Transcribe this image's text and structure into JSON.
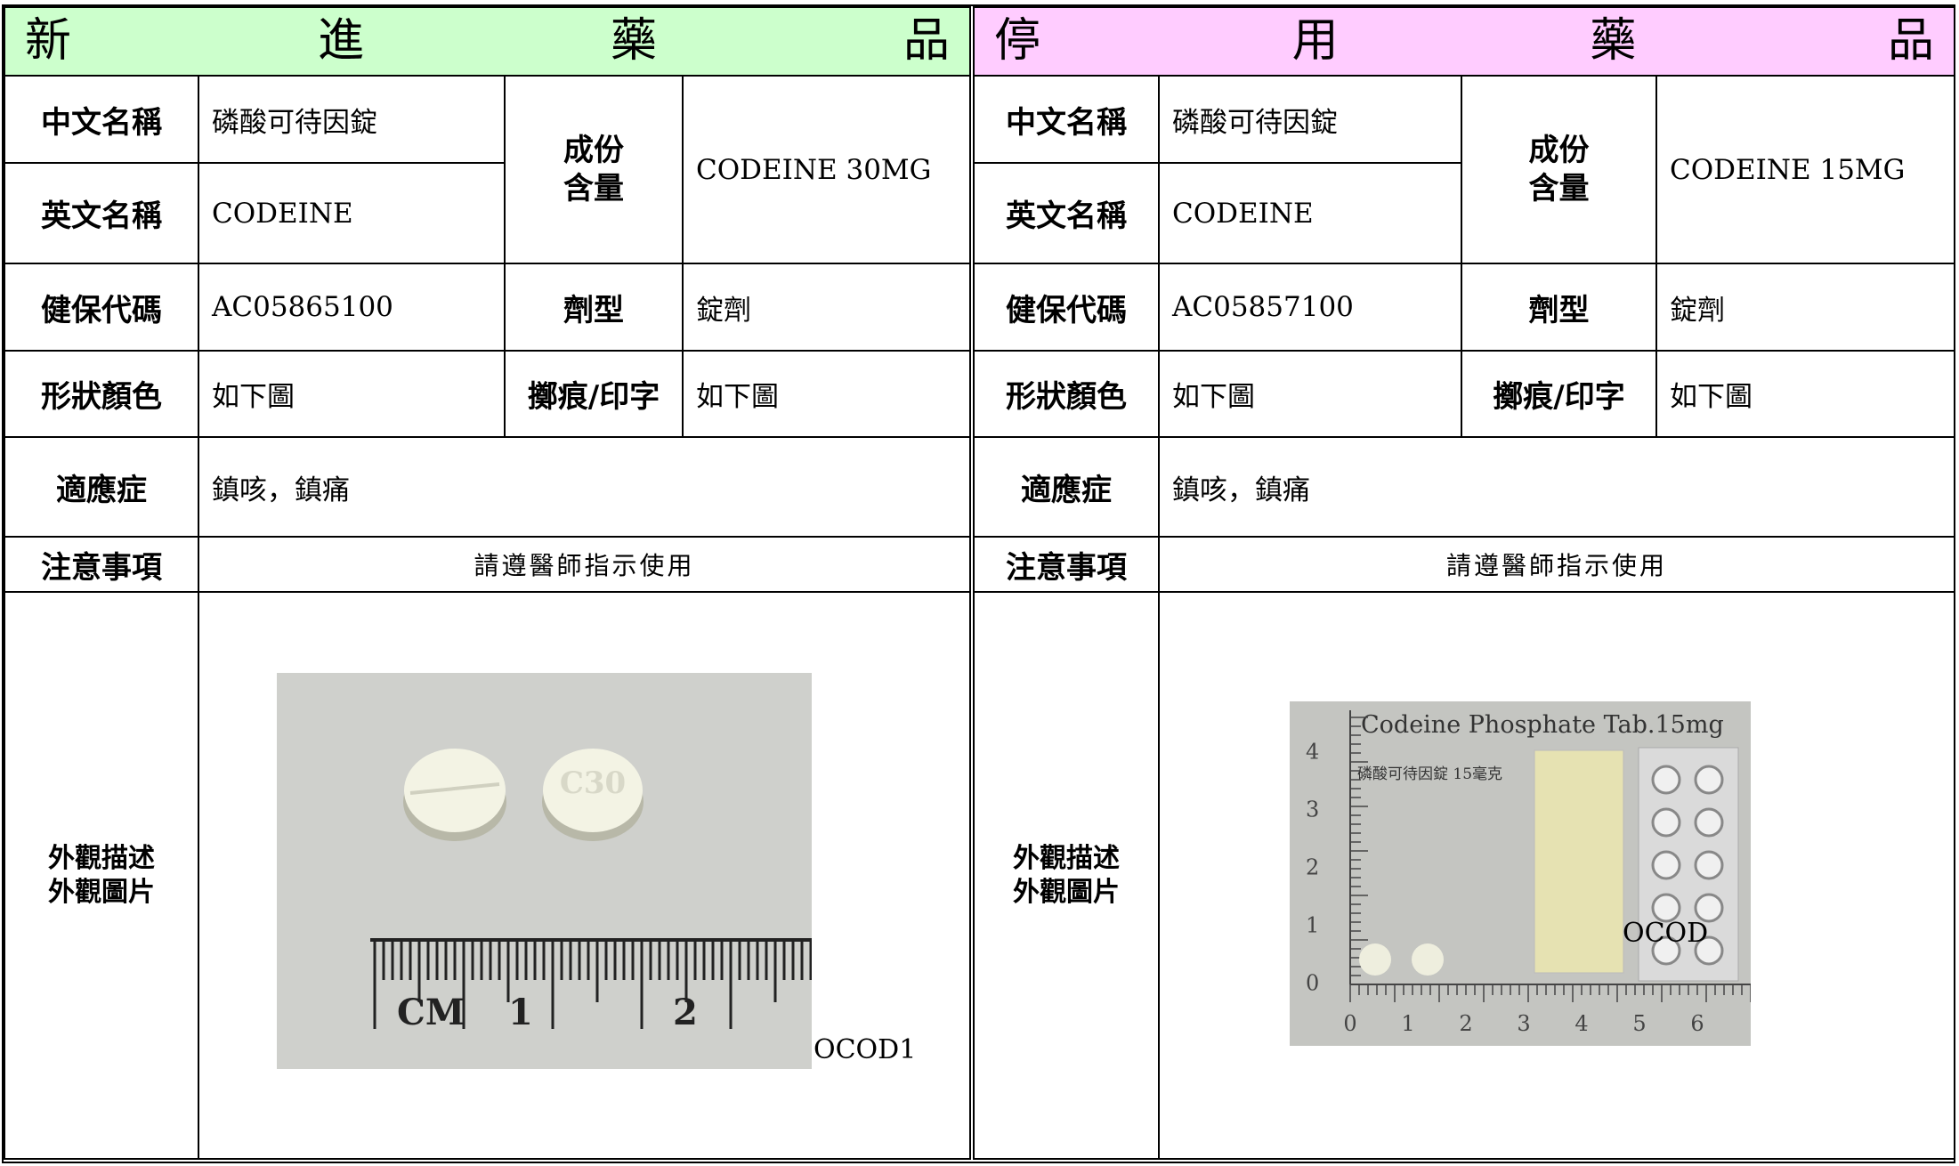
{
  "panels": [
    {
      "title": "新進藥品",
      "chinese_name_label": "中文名稱",
      "chinese_name": "磷酸可待因錠",
      "english_name_label": "英文名稱",
      "english_name": "CODEINE",
      "ingredient_label": [
        "成份",
        "含量"
      ],
      "ingredient": "CODEINE 30MG",
      "code_label": "健保代碼",
      "code": "AC05865100",
      "form_label": "劑型",
      "form": "錠劑",
      "shape_label": "形狀顏色",
      "shape": "如下圖",
      "imprint_label": "擲痕/印字",
      "imprint": "如下圖",
      "indication_label": "適應症",
      "indication": "鎮咳，鎮痛",
      "caution_label": "注意事項",
      "caution": "請遵醫師指示使用",
      "appearance_label": [
        "外觀描述",
        "外觀圖片"
      ],
      "photo": {
        "caption": "OCOD1",
        "imprint": "C30",
        "ruler": [
          "CM",
          "1",
          "2"
        ]
      }
    },
    {
      "title": "停用藥品",
      "chinese_name_label": "中文名稱",
      "chinese_name": "磷酸可待因錠",
      "english_name_label": "英文名稱",
      "english_name": "CODEINE",
      "ingredient_label": [
        "成份",
        "含量"
      ],
      "ingredient": "CODEINE 15MG",
      "code_label": "健保代碼",
      "code": "AC05857100",
      "form_label": "劑型",
      "form": "錠劑",
      "shape_label": "形狀顏色",
      "shape": "如下圖",
      "imprint_label": "擲痕/印字",
      "imprint": "如下圖",
      "indication_label": "適應症",
      "indication": "鎮咳，鎮痛",
      "caution_label": "注意事項",
      "caution": "請遵醫師指示使用",
      "appearance_label": [
        "外觀描述",
        "外觀圖片"
      ],
      "photo": {
        "caption": "OCOD",
        "heading": "Codeine Phosphate Tab.15mg",
        "subheading": "磷酸可待因錠 15毫克",
        "ruler_x": [
          0,
          1,
          2,
          3,
          4,
          5,
          6
        ],
        "ruler_y": [
          0,
          1,
          2,
          3,
          4
        ]
      }
    }
  ]
}
